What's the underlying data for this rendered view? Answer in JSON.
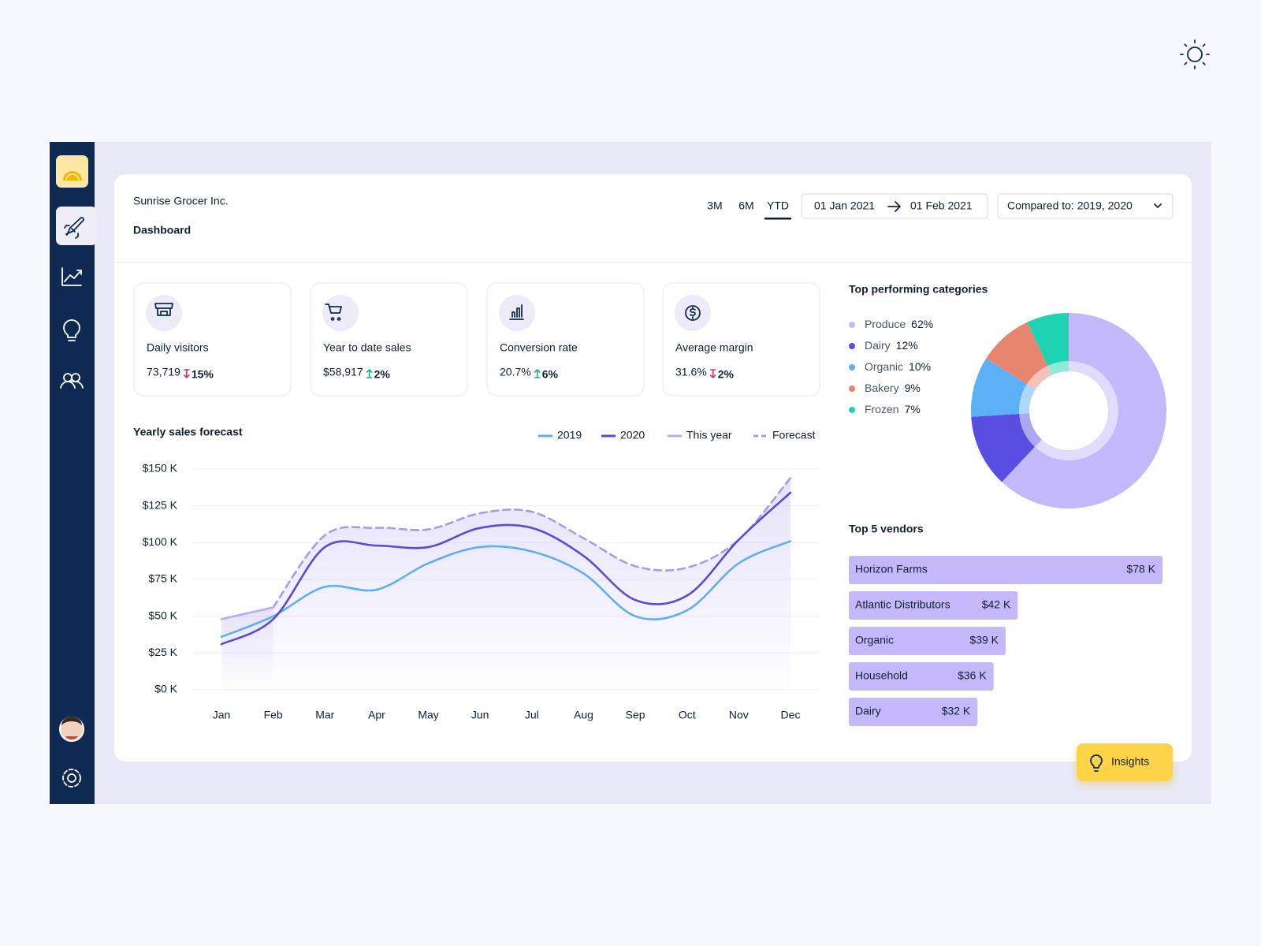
{
  "header": {
    "company": "Sunrise Grocer Inc.",
    "title": "Dashboard",
    "ranges": [
      "3M",
      "6M",
      "YTD"
    ],
    "active_range": "YTD",
    "date_from": "01 Jan 2021",
    "date_to": "01 Feb 2021",
    "compare": "Compared to: 2019, 2020"
  },
  "kpis": [
    {
      "label": "Daily visitors",
      "value": "73,719",
      "change": "15%",
      "direction": "down"
    },
    {
      "label": "Year to date sales",
      "value": "$58,917",
      "change": "2%",
      "direction": "up"
    },
    {
      "label": "Conversion rate",
      "value": "20.7%",
      "change": "6%",
      "direction": "up"
    },
    {
      "label": "Average margin",
      "value": "31.6%",
      "change": "2%",
      "direction": "down"
    }
  ],
  "insights_button": "Insights",
  "chart_data": [
    {
      "type": "line",
      "title": "Yearly sales forecast",
      "categories": [
        "Jan",
        "Feb",
        "Mar",
        "Apr",
        "May",
        "Jun",
        "Jul",
        "Aug",
        "Sep",
        "Oct",
        "Nov",
        "Dec"
      ],
      "ylim": [
        0,
        150
      ],
      "yticks": [
        {
          "value": 0,
          "label": "$0 K"
        },
        {
          "value": 25,
          "label": "$25 K"
        },
        {
          "value": 50,
          "label": "$50 K"
        },
        {
          "value": 75,
          "label": "$75 K"
        },
        {
          "value": 100,
          "label": "$100 K"
        },
        {
          "value": 125,
          "label": "$125 K"
        },
        {
          "value": 150,
          "label": "$150 K"
        }
      ],
      "grid": true,
      "legend": "top-right",
      "series": [
        {
          "name": "2019",
          "color": "#5fb0f0",
          "values": [
            36,
            50,
            70,
            68,
            86,
            97,
            94,
            79,
            50,
            54,
            86,
            101
          ]
        },
        {
          "name": "2020",
          "color": "#5a4bd6",
          "values": [
            31,
            48,
            97,
            98,
            97,
            110,
            110,
            91,
            61,
            64,
            102,
            134
          ]
        },
        {
          "name": "This year",
          "color": "#b9abf5",
          "values": [
            48,
            56,
            null,
            null,
            null,
            null,
            null,
            null,
            null,
            null,
            null,
            null
          ]
        },
        {
          "name": "Forecast",
          "color": "#a99bec",
          "dashed": true,
          "values": [
            null,
            56,
            105,
            110,
            109,
            120,
            121,
            103,
            84,
            83,
            102,
            144
          ]
        }
      ]
    },
    {
      "type": "donut",
      "title": "Top performing categories",
      "categories": [
        "Produce",
        "Dairy",
        "Organic",
        "Bakery",
        "Frozen"
      ],
      "values": [
        62,
        12,
        10,
        9,
        7
      ],
      "value_labels": [
        "62%",
        "12%",
        "10%",
        "9%",
        "7%"
      ],
      "colors": [
        "#c3b8fa",
        "#5a4de2",
        "#5cb0f6",
        "#e8856f",
        "#1fd3b2"
      ]
    },
    {
      "type": "bar",
      "orientation": "horizontal",
      "title": "Top 5 vendors",
      "categories": [
        "Horizon Farms",
        "Atlantic Distributors",
        "Organic",
        "Household",
        "Dairy"
      ],
      "values": [
        78,
        42,
        39,
        36,
        32
      ],
      "value_labels": [
        "$78 K",
        "$42 K",
        "$39 K",
        "$36 K",
        "$32 K"
      ],
      "color": "#c4b8fb"
    }
  ]
}
